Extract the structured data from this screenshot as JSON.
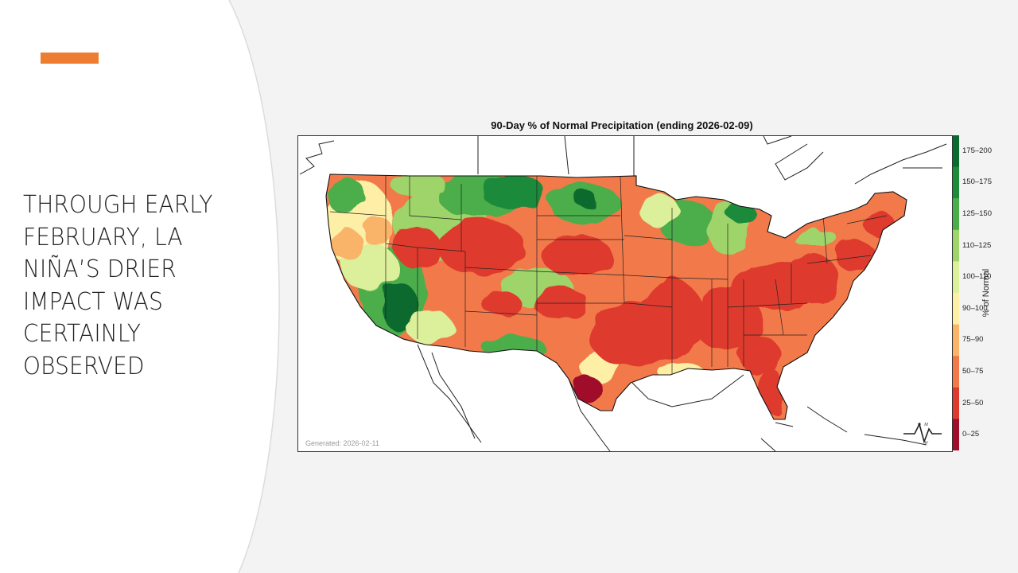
{
  "slide": {
    "title": "THROUGH EARLY FEBRUARY, LA NIÑA’S DRIER IMPACT WAS CERTAINLY OBSERVED",
    "accent_color": "#ed7d31"
  },
  "map": {
    "title": "90-Day % of Normal Precipitation (ending 2026-02-09)",
    "generated": "Generated: 2026-02-11",
    "colorbar_label": "% of Normal",
    "legend": [
      {
        "label": "175–200",
        "color": "#0b6b2e"
      },
      {
        "label": "150–175",
        "color": "#1f8a3a"
      },
      {
        "label": "125–150",
        "color": "#4cae4b"
      },
      {
        "label": "110–125",
        "color": "#9fd46a"
      },
      {
        "label": "100–110",
        "color": "#dcef9a"
      },
      {
        "label": "90–100",
        "color": "#fdf0a6"
      },
      {
        "label": "75–90",
        "color": "#f9b46a"
      },
      {
        "label": "50–75",
        "color": "#f27a4a"
      },
      {
        "label": "25–50",
        "color": "#de3b2e"
      },
      {
        "label": "0–25",
        "color": "#9f0f2b"
      }
    ],
    "logo_icon": "mountain-logo-icon"
  }
}
